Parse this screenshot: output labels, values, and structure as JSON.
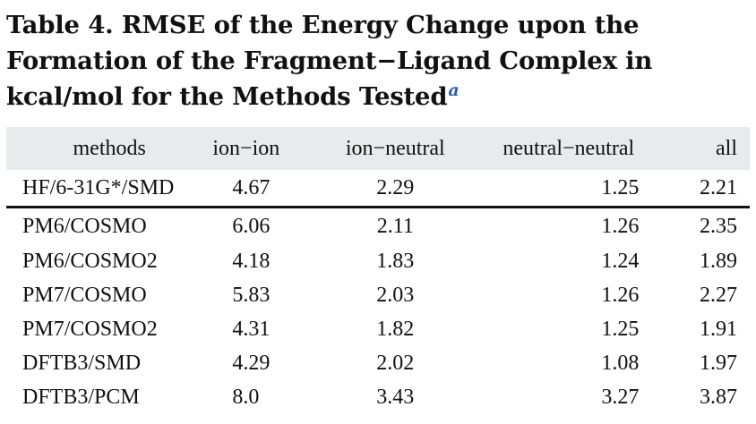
{
  "caption": {
    "text": "Table 4. RMSE of the Energy Change upon the Formation of the Fragment−Ligand Complex in kcal/mol for the Methods Tested",
    "footnote_mark": "a"
  },
  "table": {
    "headers": [
      "methods",
      "ion−ion",
      "ion−neutral",
      "neutral−neutral",
      "all"
    ],
    "rows": [
      [
        "HF/6-31G*/SMD",
        "4.67",
        "2.29",
        "1.25",
        "2.21"
      ],
      [
        "PM6/COSMO",
        "6.06",
        "2.11",
        "1.26",
        "2.35"
      ],
      [
        "PM6/COSMO2",
        "4.18",
        "1.83",
        "1.24",
        "1.89"
      ],
      [
        "PM7/COSMO",
        "5.83",
        "2.03",
        "1.26",
        "2.27"
      ],
      [
        "PM7/COSMO2",
        "4.31",
        "1.82",
        "1.25",
        "1.91"
      ],
      [
        "DFTB3/SMD",
        "4.29",
        "2.02",
        "1.08",
        "1.97"
      ],
      [
        "DFTB3/PCM",
        "8.0",
        "3.43",
        "3.27",
        "3.87"
      ]
    ]
  },
  "colors": {
    "header_background": "#e9eaec",
    "footnote_link": "#2a5db0",
    "text": "#111111"
  }
}
